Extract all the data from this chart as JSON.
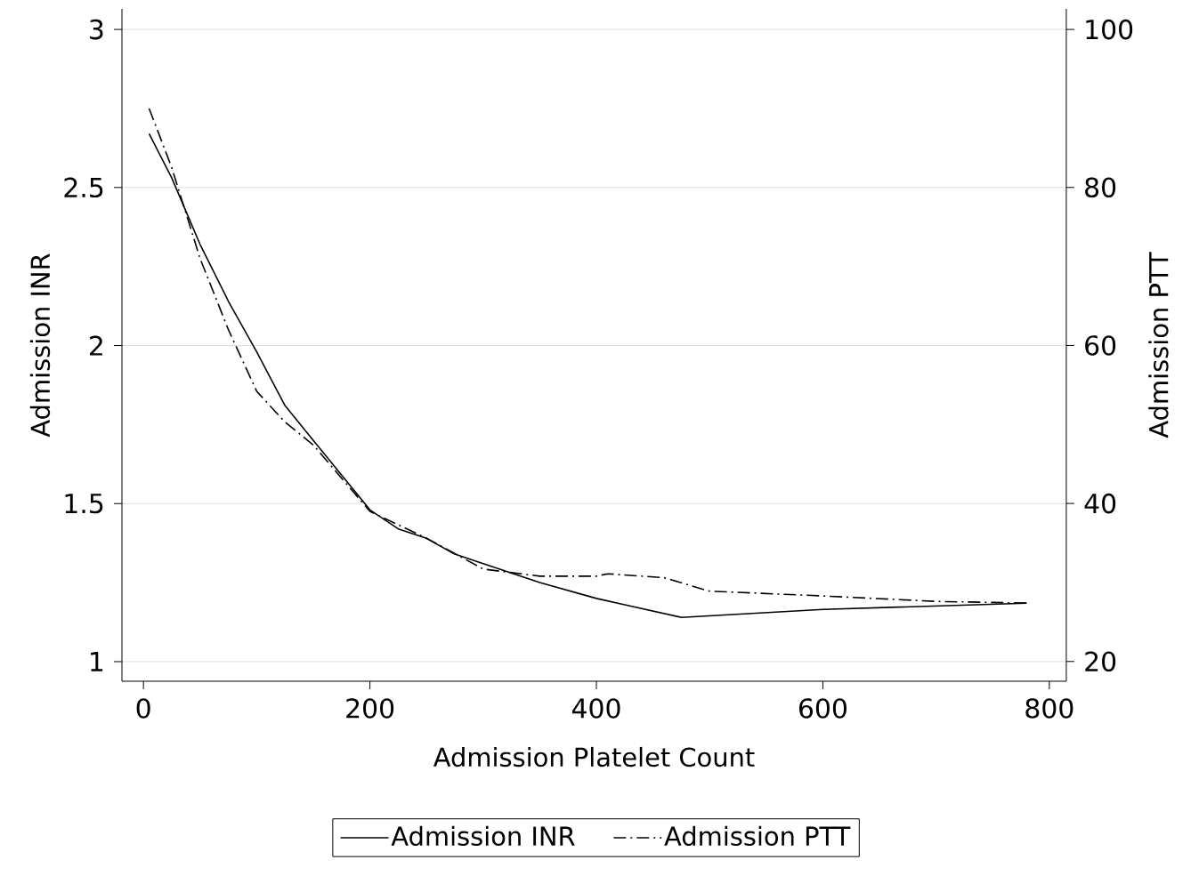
{
  "chart_data": {
    "type": "line",
    "xlabel": "Admission Platelet Count",
    "ylabel": "Admission INR",
    "y2label": "Admission PTT",
    "xlim": [
      -19,
      815
    ],
    "xticks": [
      0,
      200,
      400,
      600,
      800
    ],
    "ylim": [
      0.938,
      3.065
    ],
    "yticks": [
      1,
      1.5,
      2,
      2.5,
      3
    ],
    "y2lim": [
      17.5,
      102.6
    ],
    "y2ticks": [
      20,
      40,
      60,
      80,
      100
    ],
    "grid": "y",
    "legend": "bottom",
    "series": [
      {
        "name": "Admission INR",
        "color": "#000000",
        "line_style": "solid",
        "x": [
          5,
          25,
          50,
          75,
          100,
          125,
          150,
          175,
          200,
          225,
          250,
          275,
          300,
          350,
          400,
          425,
          475,
          600,
          780
        ],
        "values": [
          2.67,
          2.53,
          2.32,
          2.14,
          1.98,
          1.81,
          1.7,
          1.59,
          1.48,
          1.42,
          1.39,
          1.34,
          1.31,
          1.25,
          1.2,
          1.18,
          1.14,
          1.165,
          1.185
        ]
      },
      {
        "name": "Admission PTT",
        "color": "#000000",
        "line_style": "dashdot",
        "axis": "y2",
        "x": [
          5,
          25,
          50,
          75,
          100,
          125,
          150,
          200,
          225,
          250,
          300,
          350,
          400,
          410,
          460,
          500,
          600,
          700,
          780
        ],
        "values": [
          90,
          82.5,
          71,
          62,
          54.2,
          50.3,
          47.4,
          39,
          37.3,
          35.6,
          31.7,
          30.8,
          30.8,
          31.1,
          30.6,
          28.9,
          28.3,
          27.6,
          27.4
        ]
      }
    ]
  }
}
